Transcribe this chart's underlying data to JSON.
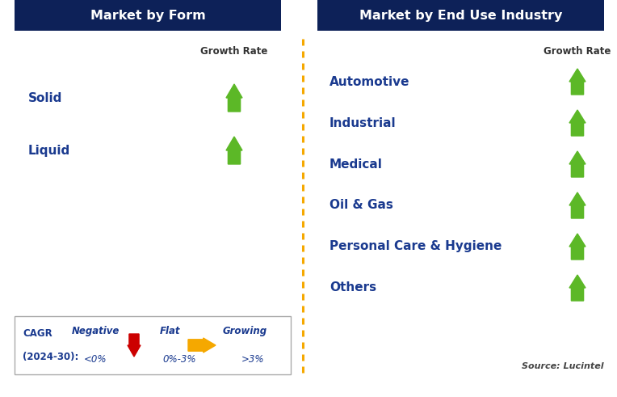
{
  "title_left": "Market by Form",
  "title_right": "Market by End Use Industry",
  "header_bg": "#0d2158",
  "header_text_color": "#ffffff",
  "left_items": [
    "Solid",
    "Liquid"
  ],
  "right_items": [
    "Automotive",
    "Industrial",
    "Medical",
    "Oil & Gas",
    "Personal Care & Hygiene",
    "Others"
  ],
  "item_text_color": "#1a3a8f",
  "growth_rate_label": "Growth Rate",
  "growth_rate_color": "#333333",
  "arrow_up_color": "#5cb827",
  "arrow_down_color": "#cc0000",
  "arrow_flat_color": "#f5a800",
  "dashed_line_color": "#f5a800",
  "legend_text_color": "#1a3a8f",
  "legend_negative": "Negative",
  "legend_negative_sub": "<0%",
  "legend_flat": "Flat",
  "legend_flat_sub": "0%-3%",
  "legend_growing": "Growing",
  "legend_growing_sub": ">3%",
  "source_text": "Source: Lucintel",
  "source_color": "#444444",
  "background_color": "#ffffff",
  "fig_width": 7.64,
  "fig_height": 4.91,
  "dpi": 100
}
